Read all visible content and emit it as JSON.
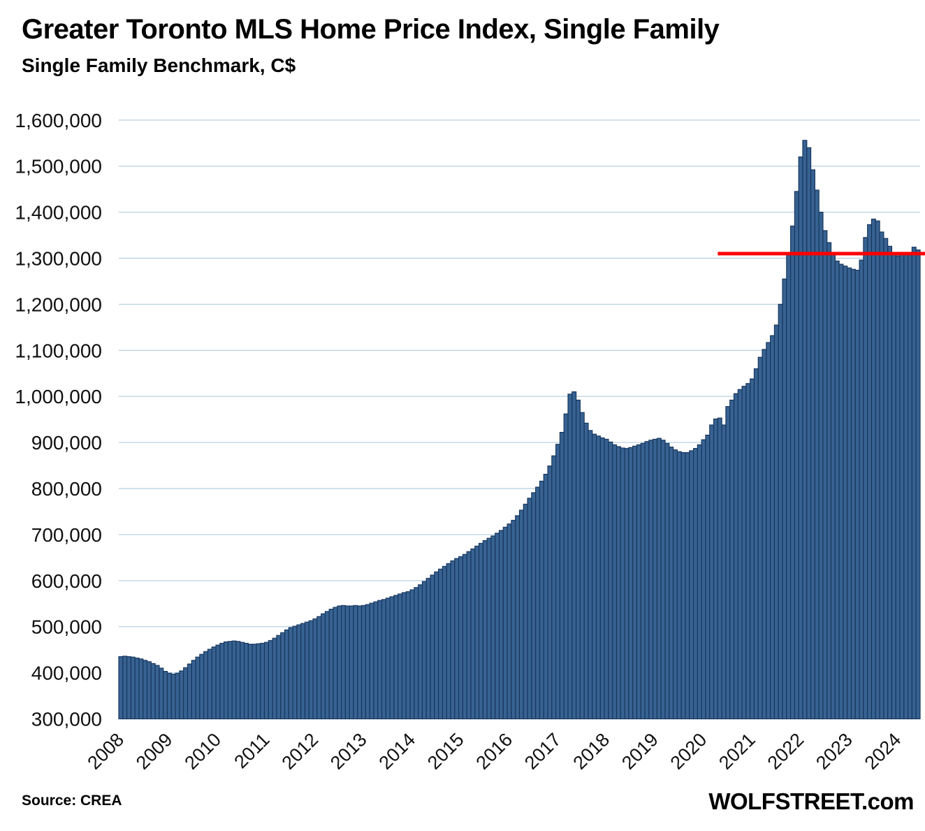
{
  "header": {
    "title": "Greater Toronto MLS Home Price Index, Single Family",
    "subtitle": "Single Family Benchmark, C$"
  },
  "footer": {
    "source": "Source: CREA",
    "watermark": "WOLFSTREET.com"
  },
  "colors": {
    "bar_fill": "#376292",
    "bar_stroke": "#17375E",
    "gridline": "#BFD5E4",
    "reference_line": "#FF0000",
    "text": "#111111"
  },
  "chart_data": {
    "type": "bar",
    "title": "Greater Toronto MLS Home Price Index, Single Family",
    "subtitle": "Single Family Benchmark, C$",
    "unit": "C$",
    "frequency": "monthly",
    "start": "2008-01",
    "end": "2024-06",
    "grid": "horizontal",
    "legend_position": "none",
    "x_tick_labels": [
      "2008",
      "2009",
      "2010",
      "2011",
      "2012",
      "2013",
      "2014",
      "2015",
      "2016",
      "2017",
      "2018",
      "2019",
      "2020",
      "2021",
      "2022",
      "2023",
      "2024"
    ],
    "y_axis": {
      "min": 300000,
      "max": 1600000,
      "step": 100000,
      "tick_labels": [
        "300,000",
        "400,000",
        "500,000",
        "600,000",
        "700,000",
        "800,000",
        "900,000",
        "1,000,000",
        "1,100,000",
        "1,200,000",
        "1,300,000",
        "1,400,000",
        "1,500,000",
        "1,600,000"
      ]
    },
    "series": [
      {
        "name": "Single Family Benchmark, C$",
        "values": [
          435000,
          436000,
          435000,
          434000,
          432000,
          430000,
          427000,
          424000,
          420000,
          416000,
          410000,
          403000,
          399000,
          397000,
          399000,
          404000,
          411000,
          419000,
          427000,
          434000,
          440000,
          446000,
          451000,
          456000,
          460000,
          464000,
          467000,
          468000,
          469000,
          468000,
          466000,
          464000,
          462000,
          462000,
          463000,
          464000,
          466000,
          470000,
          475000,
          481000,
          487000,
          493000,
          498000,
          501000,
          504000,
          507000,
          510000,
          513000,
          517000,
          522000,
          528000,
          533000,
          538000,
          542000,
          545000,
          546000,
          545000,
          545000,
          546000,
          545000,
          546000,
          548000,
          551000,
          554000,
          557000,
          559000,
          562000,
          565000,
          568000,
          571000,
          574000,
          576000,
          580000,
          585000,
          591000,
          598000,
          605000,
          612000,
          619000,
          625000,
          631000,
          637000,
          643000,
          648000,
          652000,
          657000,
          663000,
          669000,
          675000,
          681000,
          687000,
          692000,
          697000,
          703000,
          709000,
          716000,
          723000,
          731000,
          741000,
          753000,
          766000,
          779000,
          791000,
          803000,
          816000,
          831000,
          849000,
          871000,
          896000,
          922000,
          962000,
          1005000,
          1010000,
          992000,
          965000,
          942000,
          926000,
          918000,
          914000,
          910000,
          907000,
          901000,
          895000,
          891000,
          888000,
          887000,
          889000,
          892000,
          895000,
          898000,
          902000,
          905000,
          907000,
          909000,
          905000,
          898000,
          890000,
          884000,
          880000,
          878000,
          878000,
          882000,
          887000,
          895000,
          906000,
          916000,
          938000,
          951000,
          953000,
          938000,
          978000,
          992000,
          1006000,
          1015000,
          1022000,
          1028000,
          1038000,
          1060000,
          1085000,
          1102000,
          1117000,
          1132000,
          1155000,
          1200000,
          1255000,
          1310000,
          1370000,
          1445000,
          1520000,
          1556000,
          1540000,
          1492000,
          1448000,
          1400000,
          1360000,
          1334000,
          1309000,
          1294000,
          1287000,
          1283000,
          1279000,
          1276000,
          1274000,
          1296000,
          1345000,
          1373000,
          1385000,
          1381000,
          1357000,
          1343000,
          1326000,
          1312000,
          1305000,
          1310000,
          1307000,
          1312000,
          1324000,
          1318000
        ]
      }
    ],
    "reference_line": {
      "value": 1310000,
      "color": "#FF0000",
      "start_month_index": 148,
      "extends_to_right_edge": true
    }
  }
}
